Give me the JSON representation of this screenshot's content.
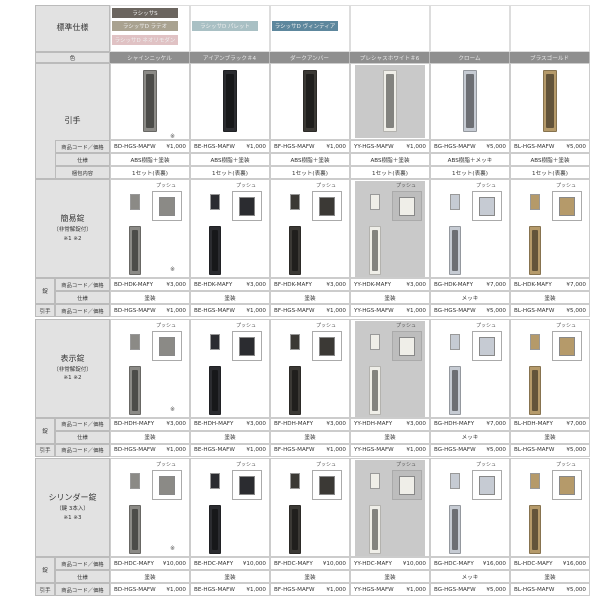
{
  "header": {
    "standard_label": "標準仕様",
    "color_label": "色",
    "swatches": [
      {
        "label": "ラシッサS",
        "color": "#6b655f"
      },
      {
        "label": "ラシッサD ラテオ",
        "color": "#a9a290"
      },
      {
        "label": "ラシッサD ネオリモダン",
        "color": "#e0c2c4"
      },
      {
        "label": "ラシッサD パレット",
        "color": "#a9c0c4"
      },
      {
        "label": "ラシッサD ヴィンティア",
        "color": "#5d879d"
      }
    ]
  },
  "labels": {
    "code_price": "商品コード／価格",
    "spec": "仕様",
    "contents": "梱包内容",
    "lock": "錠",
    "handle": "引手",
    "push": "プッシュ",
    "note_mark": "※"
  },
  "columns": [
    {
      "name": "シャインニッケル",
      "color": "#8b8a86",
      "bg": "#ffffff",
      "h_code": "BD-HGS-MAFW",
      "h_price": "¥1,000",
      "h_spec": "ABS樹脂＋塗装",
      "contents": "1セット(表裏)",
      "hdk": "BD-HDK-MAFY",
      "hdk_p": "¥3,000",
      "hdh": "BD-HDH-MAFY",
      "hdh_p": "¥3,000",
      "hdc": "BD-HDC-MAFY",
      "hdc_p": "¥10,000",
      "l_spec": "塗装"
    },
    {
      "name": "アイアンブラック＃4",
      "color": "#2b2c30",
      "bg": "#ffffff",
      "h_code": "BE-HGS-MAFW",
      "h_price": "¥1,000",
      "h_spec": "ABS樹脂＋塗装",
      "contents": "1セット(表裏)",
      "hdk": "BE-HDK-MAFY",
      "hdk_p": "¥3,000",
      "hdh": "BE-HDH-MAFY",
      "hdh_p": "¥3,000",
      "hdc": "BE-HDC-MAFY",
      "hdc_p": "¥10,000",
      "l_spec": "塗装"
    },
    {
      "name": "ダークアンバー",
      "color": "#3b3935",
      "bg": "#ffffff",
      "h_code": "BF-HGS-MAFW",
      "h_price": "¥1,000",
      "h_spec": "ABS樹脂＋塗装",
      "contents": "1セット(表裏)",
      "hdk": "BF-HDK-MAFY",
      "hdk_p": "¥3,000",
      "hdh": "BF-HDH-MAFY",
      "hdh_p": "¥3,000",
      "hdc": "BF-HDC-MAFY",
      "hdc_p": "¥10,000",
      "l_spec": "塗装"
    },
    {
      "name": "プレシャスホワイト＃6",
      "color": "#efeee8",
      "bg": "#c9c9c9",
      "h_code": "YY-HGS-MAFW",
      "h_price": "¥1,000",
      "h_spec": "ABS樹脂＋塗装",
      "contents": "1セット(表裏)",
      "hdk": "YY-HDK-MAFY",
      "hdk_p": "¥3,000",
      "hdh": "YY-HDH-MAFY",
      "hdh_p": "¥3,000",
      "hdc": "YY-HDC-MAFY",
      "hdc_p": "¥10,000",
      "l_spec": "塗装"
    },
    {
      "name": "クローム",
      "color": "#c6cbd3",
      "bg": "#ffffff",
      "h_code": "BG-HGS-MAFW",
      "h_price": "¥5,000",
      "h_spec": "ABS樹脂＋メッキ",
      "contents": "1セット(表裏)",
      "hdk": "BG-HDK-MAFY",
      "hdk_p": "¥7,000",
      "hdh": "BG-HDH-MAFY",
      "hdh_p": "¥7,000",
      "hdc": "BG-HDC-MAFY",
      "hdc_p": "¥16,000",
      "l_spec": "メッキ"
    },
    {
      "name": "ブラスゴールド",
      "color": "#b59a6a",
      "bg": "#ffffff",
      "h_code": "BL-HGS-MAFW",
      "h_price": "¥5,000",
      "h_spec": "ABS樹脂＋塗装",
      "contents": "1セット(表裏)",
      "hdk": "BL-HDK-MAFY",
      "hdk_p": "¥7,000",
      "hdh": "BL-HDH-MAFY",
      "hdh_p": "¥7,000",
      "hdc": "BL-HDC-MAFY",
      "hdc_p": "¥16,000",
      "l_spec": "塗装"
    }
  ],
  "sections": [
    {
      "title": "引手"
    },
    {
      "title": "簡易錠",
      "sub": "（非常解錠付）",
      "notes": "※1 ※2",
      "key": "hdk"
    },
    {
      "title": "表示錠",
      "sub": "（非常解錠付）",
      "notes": "※1 ※2",
      "key": "hdh"
    },
    {
      "title": "シリンダー錠",
      "sub": "（鍵 3本入）",
      "notes": "※1 ※3",
      "key": "hdc"
    }
  ]
}
